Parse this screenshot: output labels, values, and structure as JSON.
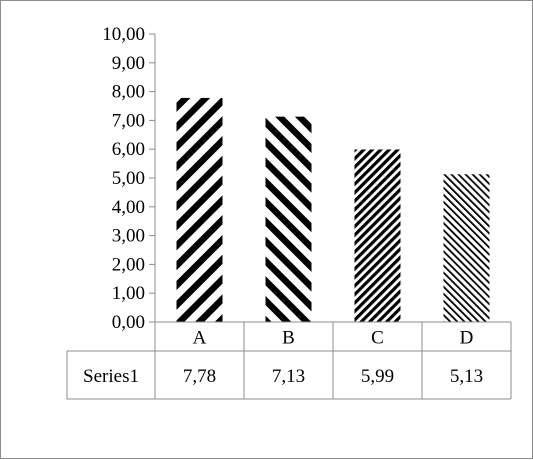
{
  "chart_data": {
    "type": "bar",
    "categories": [
      "A",
      "B",
      "C",
      "D"
    ],
    "series": [
      {
        "name": "Series1",
        "values": [
          7.78,
          7.13,
          5.99,
          5.13
        ]
      }
    ],
    "value_labels": [
      "7,78",
      "7,13",
      "5,99",
      "5,13"
    ],
    "ylim": [
      0,
      10
    ],
    "yticks": [
      "0,00",
      "1,00",
      "2,00",
      "3,00",
      "4,00",
      "5,00",
      "6,00",
      "7,00",
      "8,00",
      "9,00",
      "10,00"
    ],
    "data_table": true,
    "grid": false,
    "legend": "none",
    "fills": [
      "wide-diagonal-up",
      "wide-diagonal-down",
      "dark-diagonal-up",
      "light-diagonal-down"
    ],
    "colors": {
      "pattern": "#000000",
      "background": "#ffffff",
      "axis": "#8c8c8c"
    }
  }
}
